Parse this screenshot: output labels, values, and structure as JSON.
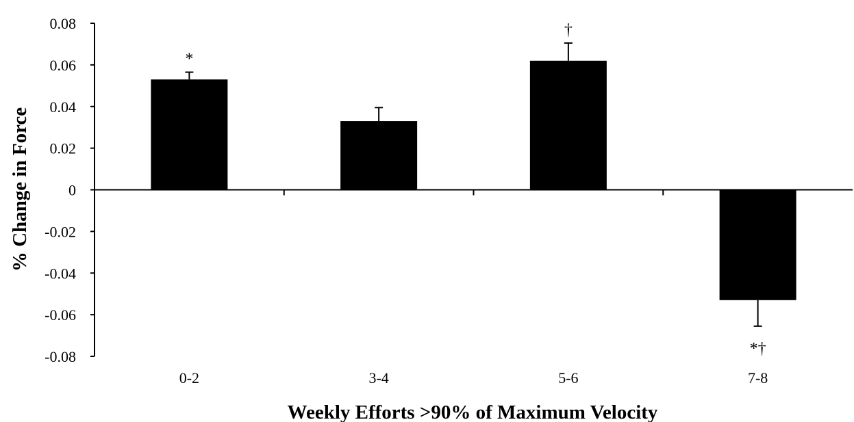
{
  "chart_data": {
    "type": "bar",
    "title": "",
    "xlabel": "Weekly Efforts >90% of Maximum Velocity",
    "ylabel": "% Change in Force",
    "categories": [
      "0-2",
      "3-4",
      "5-6",
      "7-8"
    ],
    "values": [
      0.053,
      0.033,
      0.062,
      -0.053
    ],
    "error_bars": [
      0.0035,
      0.0065,
      0.0085,
      0.0125
    ],
    "annotations": [
      "*",
      "",
      "†",
      "*†"
    ],
    "ylim": [
      -0.08,
      0.08
    ],
    "yticks": [
      "0.08",
      "0.06",
      "0.04",
      "0.02",
      "0",
      "-0.02",
      "-0.04",
      "-0.06",
      "-0.08"
    ],
    "ytick_values": [
      0.08,
      0.06,
      0.04,
      0.02,
      0,
      -0.02,
      -0.04,
      -0.06,
      -0.08
    ],
    "grid": false,
    "bar_color": "#000000"
  }
}
